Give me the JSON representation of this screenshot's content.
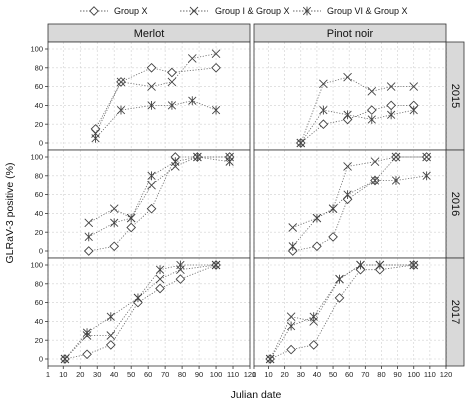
{
  "chart_data": {
    "type": "line",
    "xlabel": "Julian date",
    "ylabel": "GLRaV-3 positive (%)",
    "xlim": [
      1,
      120
    ],
    "xticks": [
      1,
      10,
      20,
      30,
      40,
      50,
      60,
      70,
      80,
      90,
      100,
      110,
      120
    ],
    "ylim": [
      0,
      100
    ],
    "yticks": [
      0,
      20,
      40,
      60,
      80,
      100
    ],
    "grid": true,
    "legend_position": "top",
    "columns": [
      "Merlot",
      "Pinot noir"
    ],
    "rows": [
      "2015",
      "2016",
      "2017"
    ],
    "series_meta": [
      {
        "name": "Group X",
        "marker": "diamond"
      },
      {
        "name": "Group I & Group X",
        "marker": "x"
      },
      {
        "name": "Group VI & Group X",
        "marker": "star"
      }
    ],
    "panels": [
      {
        "column": "Merlot",
        "row": "2015",
        "series": [
          {
            "name": "Group X",
            "x": [
              29,
              44,
              62,
              74,
              100
            ],
            "y": [
              15,
              65,
              80,
              75,
              80
            ]
          },
          {
            "name": "Group I & Group X",
            "x": [
              29,
              44,
              62,
              74,
              86,
              100
            ],
            "y": [
              10,
              65,
              60,
              65,
              90,
              95
            ]
          },
          {
            "name": "Group VI & Group X",
            "x": [
              29,
              44,
              62,
              74,
              86,
              100
            ],
            "y": [
              5,
              35,
              40,
              40,
              45,
              35
            ]
          }
        ]
      },
      {
        "column": "Pinot noir",
        "row": "2015",
        "series": [
          {
            "name": "Group X",
            "x": [
              30,
              44,
              59,
              74,
              86,
              100
            ],
            "y": [
              0,
              20,
              25,
              35,
              40,
              40
            ]
          },
          {
            "name": "Group I & Group X",
            "x": [
              30,
              44,
              59,
              74,
              86,
              100
            ],
            "y": [
              0,
              63,
              70,
              55,
              60,
              60
            ]
          },
          {
            "name": "Group VI & Group X",
            "x": [
              30,
              44,
              59,
              74,
              86,
              100
            ],
            "y": [
              0,
              35,
              30,
              25,
              30,
              35
            ]
          }
        ]
      },
      {
        "column": "Merlot",
        "row": "2016",
        "series": [
          {
            "name": "Group X",
            "x": [
              25,
              40,
              50,
              62,
              76,
              89,
              108
            ],
            "y": [
              0,
              5,
              25,
              45,
              100,
              100,
              100
            ]
          },
          {
            "name": "Group I & Group X",
            "x": [
              25,
              40,
              50,
              62,
              76,
              89,
              108
            ],
            "y": [
              30,
              45,
              35,
              70,
              90,
              100,
              100
            ]
          },
          {
            "name": "Group VI & Group X",
            "x": [
              25,
              40,
              50,
              62,
              76,
              89,
              108
            ],
            "y": [
              15,
              30,
              35,
              80,
              95,
              100,
              95
            ]
          }
        ]
      },
      {
        "column": "Pinot noir",
        "row": "2016",
        "series": [
          {
            "name": "Group X",
            "x": [
              25,
              40,
              50,
              59,
              76,
              89,
              108
            ],
            "y": [
              0,
              5,
              15,
              55,
              75,
              100,
              100
            ]
          },
          {
            "name": "Group I & Group X",
            "x": [
              25,
              40,
              50,
              59,
              76,
              89,
              108
            ],
            "y": [
              25,
              35,
              45,
              90,
              95,
              100,
              100
            ]
          },
          {
            "name": "Group VI & Group X",
            "x": [
              25,
              40,
              50,
              59,
              76,
              89,
              108
            ],
            "y": [
              5,
              35,
              45,
              60,
              75,
              75,
              80
            ]
          }
        ]
      },
      {
        "column": "Merlot",
        "row": "2017",
        "series": [
          {
            "name": "Group X",
            "x": [
              11,
              24,
              38,
              54,
              67,
              79,
              100
            ],
            "y": [
              0,
              5,
              15,
              60,
              75,
              85,
              100
            ]
          },
          {
            "name": "Group I & Group X",
            "x": [
              11,
              24,
              38,
              54,
              67,
              79,
              100
            ],
            "y": [
              0,
              25,
              25,
              65,
              85,
              95,
              100
            ]
          },
          {
            "name": "Group VI & Group X",
            "x": [
              11,
              24,
              38,
              54,
              67,
              79,
              100
            ],
            "y": [
              0,
              28,
              45,
              65,
              95,
              100,
              100
            ]
          }
        ]
      },
      {
        "column": "Pinot noir",
        "row": "2017",
        "series": [
          {
            "name": "Group X",
            "x": [
              11,
              24,
              38,
              54,
              67,
              79,
              100
            ],
            "y": [
              0,
              10,
              15,
              65,
              95,
              95,
              100
            ]
          },
          {
            "name": "Group I & Group X",
            "x": [
              11,
              24,
              38,
              54,
              67,
              79,
              100
            ],
            "y": [
              0,
              45,
              40,
              85,
              100,
              100,
              100
            ]
          },
          {
            "name": "Group VI & Group X",
            "x": [
              11,
              24,
              38,
              54,
              67,
              79,
              100
            ],
            "y": [
              0,
              35,
              45,
              85,
              100,
              100,
              100
            ]
          }
        ]
      }
    ]
  },
  "colors": {
    "strip": "#d9d9d9",
    "marker": "#444444",
    "line": "#666666",
    "grid": "#d0d0d0",
    "frame": "#333333"
  }
}
